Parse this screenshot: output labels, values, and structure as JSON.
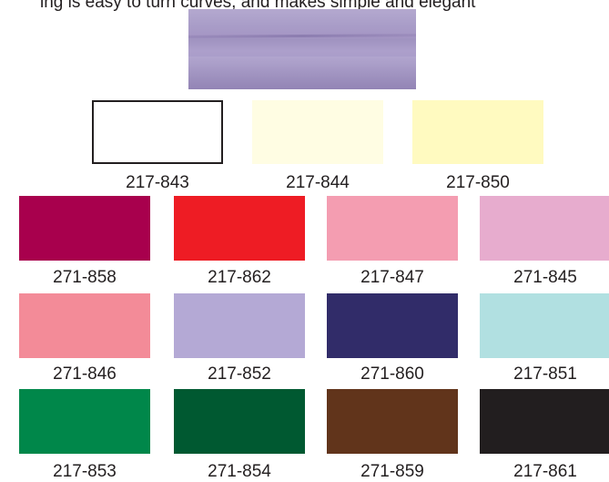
{
  "header_text": "ing is easy to turn curves, and makes simple and elegant",
  "top_row": [
    {
      "code": "217-843",
      "color": "#ffffff",
      "outlined": true
    },
    {
      "code": "217-844",
      "color": "#fffde3"
    },
    {
      "code": "217-850",
      "color": "#fffac0"
    }
  ],
  "grid_rows": [
    [
      {
        "code": "271-858",
        "color": "#a8004d"
      },
      {
        "code": "217-862",
        "color": "#ee1c24"
      },
      {
        "code": "217-847",
        "color": "#f49db1"
      },
      {
        "code": "271-845",
        "color": "#e7acce"
      }
    ],
    [
      {
        "code": "271-846",
        "color": "#f38b98"
      },
      {
        "code": "217-852",
        "color": "#b4a9d5"
      },
      {
        "code": "271-860",
        "color": "#312c69"
      },
      {
        "code": "217-851",
        "color": "#b1e0e1"
      }
    ],
    [
      {
        "code": "217-853",
        "color": "#00874a"
      },
      {
        "code": "271-854",
        "color": "#005931"
      },
      {
        "code": "271-859",
        "color": "#61341b"
      },
      {
        "code": "217-861",
        "color": "#221e1f"
      }
    ]
  ]
}
